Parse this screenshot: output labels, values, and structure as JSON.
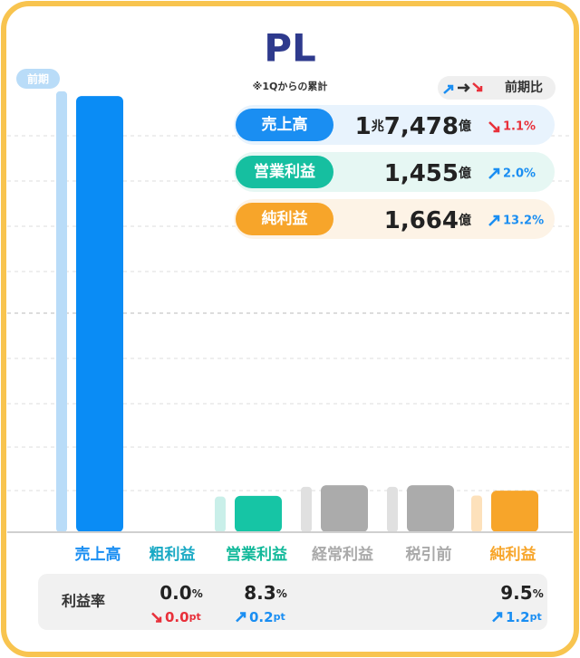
{
  "title": "PL",
  "subtitle": "※1Qからの累計",
  "legend_label": "前期比",
  "kpis": [
    {
      "label": "売上高",
      "color": "#1a8ef2",
      "background": "#e8f3fd",
      "parts": [
        "1",
        "兆",
        "7,478",
        "億"
      ],
      "change": "1.1%",
      "direction": "down"
    },
    {
      "label": "営業利益",
      "color": "#16bfa0",
      "background": "#e6f7f3",
      "parts": [
        "1,455",
        "億"
      ],
      "change": "2.0%",
      "direction": "up"
    },
    {
      "label": "純利益",
      "color": "#f7a52a",
      "background": "#fdf3e6",
      "parts": [
        "1,664",
        "億"
      ],
      "change": "13.2%",
      "direction": "up"
    }
  ],
  "chart_data": {
    "type": "bar",
    "categories": [
      "売上高",
      "粗利益",
      "営業利益",
      "経常利益",
      "税引前",
      "純利益"
    ],
    "category_colors": [
      "#1a8ef2",
      "#19a9c4",
      "#12b99a",
      "#aaaaaa",
      "#aaaaaa",
      "#f7a52a"
    ],
    "series": [
      {
        "name": "前期",
        "colors": [
          "#b9dcf8",
          "#c9efe9",
          "#c9efe9",
          "#e0e0e0",
          "#e0e0e0",
          "#fde1bb"
        ],
        "values": [
          17670,
          null,
          1426,
          1820,
          1820,
          1470
        ]
      },
      {
        "colors": [
          "#0a8cf5",
          "#16c5a5",
          "#16c5a5",
          "#ababab",
          "#ababab",
          "#f7a52a"
        ],
        "values": [
          17478,
          null,
          1455,
          1880,
          1880,
          1664
        ]
      }
    ],
    "ylim": [
      0,
      17700
    ]
  },
  "margin_row": {
    "label": "利益率",
    "cells": [
      null,
      {
        "value": "0.0",
        "unit": "%",
        "change": "0.0",
        "change_unit": "pt",
        "direction": "down"
      },
      {
        "value": "8.3",
        "unit": "%",
        "change": "0.2",
        "change_unit": "pt",
        "direction": "up"
      },
      null,
      null,
      {
        "value": "9.5",
        "unit": "%",
        "change": "1.2",
        "change_unit": "pt",
        "direction": "up"
      }
    ]
  }
}
